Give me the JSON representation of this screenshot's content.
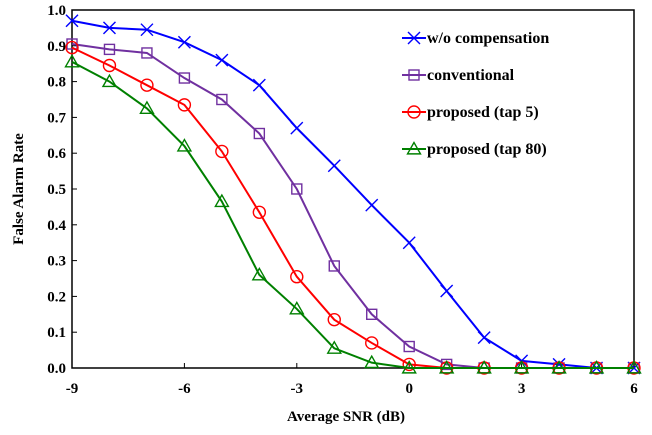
{
  "chart_data": {
    "type": "line",
    "title": "",
    "xlabel": "Average SNR (dB)",
    "ylabel": "False Alarm Rate",
    "xlim": [
      -9,
      6
    ],
    "ylim": [
      0,
      1.0
    ],
    "xticks": [
      -9,
      -6,
      -3,
      0,
      3,
      6
    ],
    "xtick_labels": [
      "-9",
      "-6",
      "-3",
      "0",
      "3",
      "6"
    ],
    "yticks": [
      0,
      0.1,
      0.2,
      0.3,
      0.4,
      0.5,
      0.6,
      0.7,
      0.8,
      0.9,
      1.0
    ],
    "ytick_labels": [
      "0.0",
      "0.1",
      "0.2",
      "0.3",
      "0.4",
      "0.5",
      "0.6",
      "0.7",
      "0.8",
      "0.9",
      "1.0"
    ],
    "grid": false,
    "legend_position": "top-right",
    "x": [
      -9,
      -8,
      -7,
      -6,
      -5,
      -4,
      -3,
      -2,
      -1,
      0,
      1,
      2,
      3,
      4,
      5,
      6
    ],
    "series": [
      {
        "name": "w/o compensation",
        "color": "#0000ff",
        "marker": "x",
        "values": [
          0.97,
          0.95,
          0.945,
          0.91,
          0.86,
          0.79,
          0.67,
          0.565,
          0.455,
          0.35,
          0.215,
          0.085,
          0.02,
          0.01,
          0.0,
          0.0
        ]
      },
      {
        "name": "conventional",
        "color": "#7030a0",
        "marker": "square",
        "values": [
          0.905,
          0.89,
          0.88,
          0.81,
          0.75,
          0.655,
          0.5,
          0.285,
          0.15,
          0.06,
          0.01,
          0.0,
          0.0,
          0.0,
          0.0,
          0.0
        ]
      },
      {
        "name": "proposed (tap 5)",
        "color": "#ff0000",
        "marker": "circle",
        "values": [
          0.895,
          0.845,
          0.79,
          0.735,
          0.605,
          0.435,
          0.255,
          0.135,
          0.07,
          0.01,
          0.0,
          0.0,
          0.0,
          0.0,
          0.0,
          0.0
        ]
      },
      {
        "name": "proposed (tap 80)",
        "color": "#008000",
        "marker": "triangle",
        "values": [
          0.855,
          0.8,
          0.725,
          0.62,
          0.465,
          0.26,
          0.165,
          0.055,
          0.015,
          0.0,
          0.0,
          0.0,
          0.0,
          0.0,
          0.0,
          0.0
        ]
      }
    ]
  }
}
